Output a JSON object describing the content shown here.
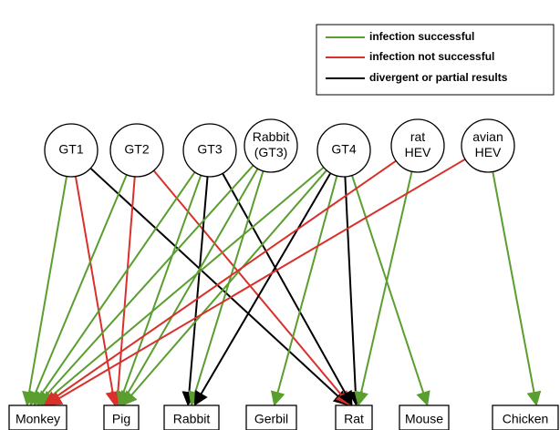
{
  "legend": {
    "items": [
      "infection successful",
      "infection not successful",
      "divergent or partial results"
    ]
  },
  "sources": [
    [
      "GT1"
    ],
    [
      "GT2"
    ],
    [
      "GT3"
    ],
    [
      "Rabbit",
      "(GT3)"
    ],
    [
      "GT4"
    ],
    [
      "rat",
      "HEV"
    ],
    [
      "avian",
      "HEV"
    ]
  ],
  "hosts": [
    "Monkey",
    "Pig",
    "Rabbit",
    "Gerbil",
    "Rat",
    "Mouse",
    "Chicken"
  ]
}
